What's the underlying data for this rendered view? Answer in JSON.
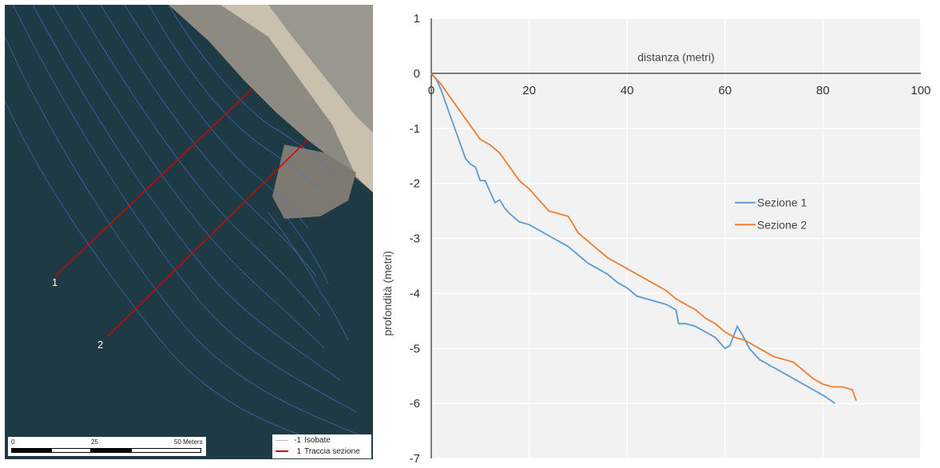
{
  "map": {
    "section_labels": [
      "1",
      "2"
    ],
    "legend": [
      {
        "symbol": "-1",
        "label": "Isobate",
        "color": "#bbbbbb"
      },
      {
        "symbol": "1",
        "label": "Traccia sezione",
        "color": "#d40000"
      }
    ],
    "scale_bar": {
      "labels": [
        "0",
        "25",
        "50 Meters"
      ]
    },
    "colors": {
      "water": "#1d3a45",
      "section_line": "#d40000",
      "isobath": "#4f74c9"
    }
  },
  "chart_data": {
    "type": "line",
    "title": "",
    "xlabel": "distanza (metri)",
    "ylabel": "profondità (metri)",
    "xlim": [
      0,
      100
    ],
    "ylim": [
      -7,
      1
    ],
    "x_ticks": [
      0,
      20,
      40,
      60,
      80,
      100
    ],
    "y_ticks": [
      1,
      0,
      -1,
      -2,
      -3,
      -4,
      -5,
      -6,
      -7
    ],
    "x_axis_position": "top, at y = 0",
    "grid": true,
    "legend_position": "right",
    "colors": {
      "plot_background": "#f2f2f2",
      "grid": "#ffffff"
    },
    "series": [
      {
        "name": "Sezione 1",
        "color": "#5b9bd5",
        "points": [
          [
            0,
            0
          ],
          [
            1,
            -0.1
          ],
          [
            2,
            -0.3
          ],
          [
            3,
            -0.55
          ],
          [
            4,
            -0.8
          ],
          [
            5,
            -1.05
          ],
          [
            6,
            -1.3
          ],
          [
            7,
            -1.55
          ],
          [
            8,
            -1.65
          ],
          [
            9,
            -1.7
          ],
          [
            10,
            -1.95
          ],
          [
            11,
            -1.95
          ],
          [
            12,
            -2.15
          ],
          [
            13,
            -2.35
          ],
          [
            14,
            -2.3
          ],
          [
            15,
            -2.45
          ],
          [
            16,
            -2.55
          ],
          [
            18,
            -2.7
          ],
          [
            20,
            -2.75
          ],
          [
            22,
            -2.85
          ],
          [
            24,
            -2.95
          ],
          [
            26,
            -3.05
          ],
          [
            28,
            -3.15
          ],
          [
            30,
            -3.3
          ],
          [
            32,
            -3.45
          ],
          [
            34,
            -3.55
          ],
          [
            36,
            -3.65
          ],
          [
            38,
            -3.8
          ],
          [
            40,
            -3.9
          ],
          [
            42,
            -4.05
          ],
          [
            44,
            -4.1
          ],
          [
            46,
            -4.15
          ],
          [
            48,
            -4.2
          ],
          [
            50,
            -4.3
          ],
          [
            50.5,
            -4.55
          ],
          [
            52,
            -4.55
          ],
          [
            54,
            -4.6
          ],
          [
            56,
            -4.7
          ],
          [
            58,
            -4.8
          ],
          [
            59,
            -4.9
          ],
          [
            60,
            -5.0
          ],
          [
            61,
            -4.95
          ],
          [
            62.5,
            -4.6
          ],
          [
            63.5,
            -4.75
          ],
          [
            65,
            -5.0
          ],
          [
            67,
            -5.2
          ],
          [
            70,
            -5.35
          ],
          [
            72,
            -5.45
          ],
          [
            75,
            -5.6
          ],
          [
            77,
            -5.7
          ],
          [
            80,
            -5.85
          ],
          [
            82.5,
            -6.0
          ]
        ]
      },
      {
        "name": "Sezione 2",
        "color": "#ed7d31",
        "points": [
          [
            0,
            0
          ],
          [
            2,
            -0.2
          ],
          [
            4,
            -0.45
          ],
          [
            6,
            -0.7
          ],
          [
            8,
            -0.95
          ],
          [
            10,
            -1.2
          ],
          [
            12,
            -1.3
          ],
          [
            14,
            -1.45
          ],
          [
            16,
            -1.7
          ],
          [
            18,
            -1.95
          ],
          [
            20,
            -2.1
          ],
          [
            22,
            -2.3
          ],
          [
            24,
            -2.5
          ],
          [
            26,
            -2.55
          ],
          [
            28,
            -2.6
          ],
          [
            29,
            -2.75
          ],
          [
            30,
            -2.9
          ],
          [
            32,
            -3.05
          ],
          [
            34,
            -3.2
          ],
          [
            36,
            -3.35
          ],
          [
            38,
            -3.45
          ],
          [
            40,
            -3.55
          ],
          [
            42,
            -3.65
          ],
          [
            44,
            -3.75
          ],
          [
            46,
            -3.85
          ],
          [
            48,
            -3.95
          ],
          [
            50,
            -4.1
          ],
          [
            52,
            -4.2
          ],
          [
            54,
            -4.3
          ],
          [
            56,
            -4.45
          ],
          [
            58,
            -4.55
          ],
          [
            60,
            -4.7
          ],
          [
            62,
            -4.8
          ],
          [
            64,
            -4.85
          ],
          [
            66,
            -4.95
          ],
          [
            68,
            -5.05
          ],
          [
            70,
            -5.15
          ],
          [
            72,
            -5.2
          ],
          [
            74,
            -5.25
          ],
          [
            76,
            -5.4
          ],
          [
            78,
            -5.55
          ],
          [
            80,
            -5.65
          ],
          [
            82,
            -5.7
          ],
          [
            84,
            -5.7
          ],
          [
            86,
            -5.75
          ],
          [
            86.8,
            -5.95
          ]
        ]
      }
    ]
  }
}
